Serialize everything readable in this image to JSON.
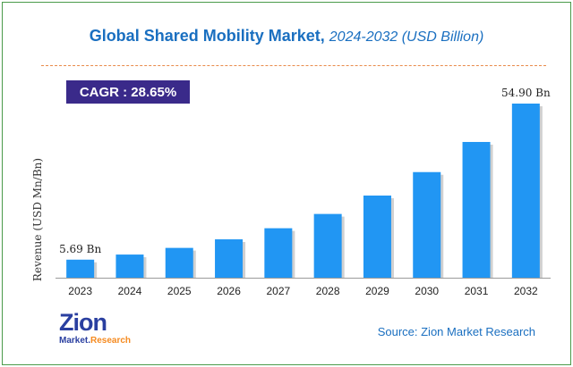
{
  "title": {
    "main": "Global Shared Mobility Market,",
    "sub": "2024-2032 (USD Billion)"
  },
  "cagr": "CAGR :  28.65%",
  "source": "Source: Zion Market Research",
  "logo": {
    "name": "Zion",
    "sub_left": "Market.",
    "sub_right": "Research"
  },
  "colors": {
    "bar": "#2196f3",
    "bar_shadow": "#b0b0b0",
    "title": "#1a6fc0",
    "cagr_bg": "#3a2a8a"
  },
  "chart_data": {
    "type": "bar",
    "title": "Global Shared Mobility Market, 2024-2032 (USD Billion)",
    "xlabel": "",
    "ylabel": "Revenue (USD Mn/Bn)",
    "categories": [
      "2023",
      "2024",
      "2025",
      "2026",
      "2027",
      "2028",
      "2029",
      "2030",
      "2031",
      "2032"
    ],
    "values": [
      5.69,
      7.3,
      9.4,
      12.1,
      15.6,
      20.1,
      25.9,
      33.3,
      42.8,
      54.9
    ],
    "ylim": [
      0,
      60
    ],
    "annotations": [
      {
        "index": 0,
        "text": "5.69 Bn"
      },
      {
        "index": 9,
        "text": "54.90 Bn"
      }
    ]
  }
}
